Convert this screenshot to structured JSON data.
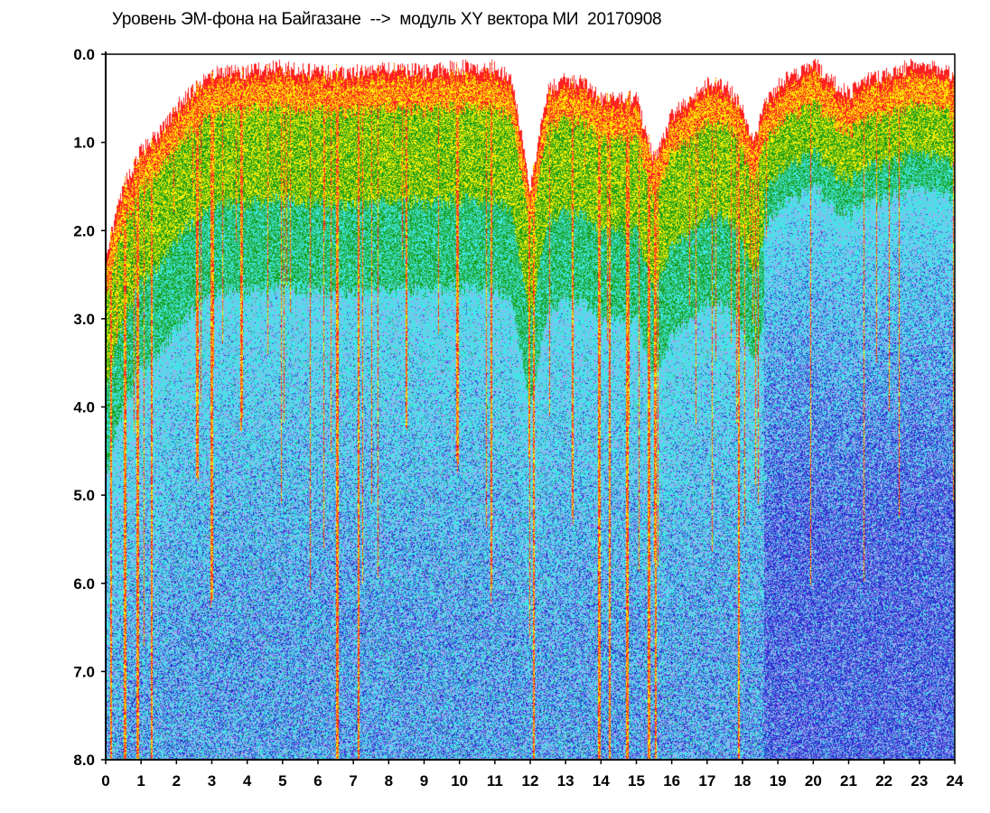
{
  "chart_data": {
    "type": "heatmap",
    "title": "Уровень ЭМ-фона на Байгазане  -->  модуль XY вектора МИ  20170908",
    "xlabel": "",
    "ylabel": "",
    "xlim": [
      0,
      24
    ],
    "ylim": [
      0,
      8
    ],
    "y_inverted": true,
    "x_ticks": [
      "0",
      "1",
      "2",
      "3",
      "4",
      "5",
      "6",
      "7",
      "8",
      "9",
      "10",
      "11",
      "12",
      "13",
      "14",
      "15",
      "16",
      "17",
      "18",
      "19",
      "20",
      "21",
      "22",
      "23",
      "24"
    ],
    "y_ticks": [
      "0.0",
      "1.0",
      "2.0",
      "3.0",
      "4.0",
      "5.0",
      "6.0",
      "7.0",
      "8.0"
    ],
    "grid": false,
    "colors": {
      "sparse": "#ff2020",
      "low": "#ffee00",
      "mid": "#1a9e1a",
      "high": "#40e6e6",
      "dense": "#3030d0",
      "lavender": "#a7a7f2"
    },
    "upper_envelope": [
      {
        "x": 0.0,
        "y": 2.3
      },
      {
        "x": 0.5,
        "y": 1.5
      },
      {
        "x": 1.0,
        "y": 1.1
      },
      {
        "x": 1.5,
        "y": 0.9
      },
      {
        "x": 2.0,
        "y": 0.6
      },
      {
        "x": 2.5,
        "y": 0.4
      },
      {
        "x": 3.0,
        "y": 0.2
      },
      {
        "x": 4.0,
        "y": 0.2
      },
      {
        "x": 5.0,
        "y": 0.15
      },
      {
        "x": 6.0,
        "y": 0.2
      },
      {
        "x": 7.0,
        "y": 0.2
      },
      {
        "x": 8.0,
        "y": 0.15
      },
      {
        "x": 9.0,
        "y": 0.2
      },
      {
        "x": 10.0,
        "y": 0.15
      },
      {
        "x": 11.0,
        "y": 0.15
      },
      {
        "x": 11.5,
        "y": 0.3
      },
      {
        "x": 12.0,
        "y": 1.5
      },
      {
        "x": 12.5,
        "y": 0.4
      },
      {
        "x": 13.0,
        "y": 0.3
      },
      {
        "x": 13.5,
        "y": 0.3
      },
      {
        "x": 14.0,
        "y": 0.5
      },
      {
        "x": 14.5,
        "y": 0.5
      },
      {
        "x": 15.0,
        "y": 0.5
      },
      {
        "x": 15.5,
        "y": 1.2
      },
      {
        "x": 16.0,
        "y": 0.7
      },
      {
        "x": 16.5,
        "y": 0.5
      },
      {
        "x": 17.0,
        "y": 0.35
      },
      {
        "x": 17.5,
        "y": 0.35
      },
      {
        "x": 18.0,
        "y": 0.6
      },
      {
        "x": 18.3,
        "y": 1.0
      },
      {
        "x": 18.6,
        "y": 0.6
      },
      {
        "x": 19.0,
        "y": 0.35
      },
      {
        "x": 20.0,
        "y": 0.1
      },
      {
        "x": 20.5,
        "y": 0.3
      },
      {
        "x": 21.0,
        "y": 0.45
      },
      {
        "x": 21.5,
        "y": 0.3
      },
      {
        "x": 22.0,
        "y": 0.25
      },
      {
        "x": 23.0,
        "y": 0.1
      },
      {
        "x": 24.0,
        "y": 0.25
      }
    ],
    "deep_dips": [
      {
        "x": 0.15,
        "depth": 8.0
      },
      {
        "x": 0.55,
        "depth": 8.0
      },
      {
        "x": 0.9,
        "depth": 8.0
      },
      {
        "x": 1.3,
        "depth": 8.0
      },
      {
        "x": 2.6,
        "depth": 4.5
      },
      {
        "x": 3.0,
        "depth": 6.0
      },
      {
        "x": 3.85,
        "depth": 4.0
      },
      {
        "x": 6.55,
        "depth": 8.0
      },
      {
        "x": 7.15,
        "depth": 8.0
      },
      {
        "x": 8.5,
        "depth": 4.0
      },
      {
        "x": 9.95,
        "depth": 4.5
      },
      {
        "x": 10.9,
        "depth": 6.0
      },
      {
        "x": 12.1,
        "depth": 8.0
      },
      {
        "x": 13.2,
        "depth": 5.0
      },
      {
        "x": 13.95,
        "depth": 8.0
      },
      {
        "x": 14.25,
        "depth": 8.0
      },
      {
        "x": 14.75,
        "depth": 8.0
      },
      {
        "x": 15.35,
        "depth": 8.0
      },
      {
        "x": 15.55,
        "depth": 8.0
      },
      {
        "x": 17.9,
        "depth": 8.0
      }
    ]
  }
}
